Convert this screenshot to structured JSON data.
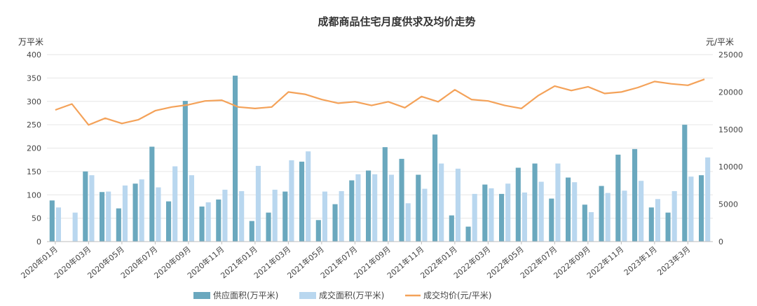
{
  "chart_data": {
    "type": "bar",
    "title": "成都商品住宅月度供求及均价走势",
    "y_left_label": "万平米",
    "y_right_label": "元/平米",
    "y_left_lim": [
      0,
      400
    ],
    "y_left_ticks": [
      "0",
      "50",
      "100",
      "150",
      "200",
      "250",
      "300",
      "350",
      "400"
    ],
    "y_right_lim": [
      0,
      25000
    ],
    "y_right_ticks": [
      "0",
      "5000",
      "10000",
      "15000",
      "20000",
      "25000"
    ],
    "grid": true,
    "legend_position": "bottom",
    "categories": [
      "2020年01月",
      "2020年02月",
      "2020年03月",
      "2020年04月",
      "2020年05月",
      "2020年06月",
      "2020年07月",
      "2020年08月",
      "2020年09月",
      "2020年10月",
      "2020年11月",
      "2020年12月",
      "2021年01月",
      "2021年02月",
      "2021年03月",
      "2021年04月",
      "2021年05月",
      "2021年06月",
      "2021年07月",
      "2021年08月",
      "2021年09月",
      "2021年10月",
      "2021年11月",
      "2021年12月",
      "2022年01月",
      "2022年02月",
      "2022年03月",
      "2022年04月",
      "2022年05月",
      "2022年06月",
      "2022年07月",
      "2022年08月",
      "2022年09月",
      "2022年10月",
      "2022年11月",
      "2022年12月",
      "2023年1月",
      "2023年2月",
      "2023年3月",
      "2023年4月"
    ],
    "x_tick_labels": [
      "2020年01月",
      "2020年03月",
      "2020年05月",
      "2020年07月",
      "2020年09月",
      "2020年11月",
      "2021年01月",
      "2021年03月",
      "2021年05月",
      "2021年07月",
      "2021年09月",
      "2021年11月",
      "2022年01月",
      "2022年03月",
      "2022年05月",
      "2022年07月",
      "2022年09月",
      "2022年11月",
      "2023年1月",
      "2023年3月"
    ],
    "series": [
      {
        "name": "供应面积(万平米)",
        "type": "bar",
        "axis": "left",
        "color": "#6aa8be",
        "values": [
          88,
          0,
          150,
          106,
          71,
          124,
          203,
          86,
          301,
          75,
          90,
          355,
          44,
          62,
          107,
          171,
          46,
          80,
          131,
          152,
          202,
          177,
          143,
          229,
          56,
          32,
          122,
          102,
          158,
          167,
          92,
          137,
          79,
          119,
          186,
          198,
          73,
          62,
          250,
          142
        ]
      },
      {
        "name": "成交面积(万平米)",
        "type": "bar",
        "axis": "left",
        "color": "#b9d7ef",
        "values": [
          73,
          62,
          142,
          107,
          120,
          133,
          116,
          161,
          142,
          84,
          111,
          108,
          162,
          111,
          174,
          193,
          107,
          108,
          144,
          144,
          143,
          82,
          113,
          167,
          156,
          102,
          114,
          124,
          105,
          128,
          167,
          127,
          63,
          104,
          109,
          130,
          91,
          108,
          139,
          180
        ]
      },
      {
        "name": "成交均价(元/平米)",
        "type": "line",
        "axis": "right",
        "color": "#f4a259",
        "values": [
          17600,
          18400,
          15600,
          16500,
          15800,
          16300,
          17500,
          18000,
          18300,
          18800,
          18900,
          18000,
          17800,
          18000,
          20000,
          19700,
          19000,
          18500,
          18700,
          18200,
          18700,
          17900,
          19400,
          18700,
          20300,
          19000,
          18800,
          18200,
          17800,
          19500,
          20800,
          20200,
          20700,
          19800,
          20000,
          20600,
          21400,
          21100,
          20900,
          21700
        ]
      }
    ]
  }
}
